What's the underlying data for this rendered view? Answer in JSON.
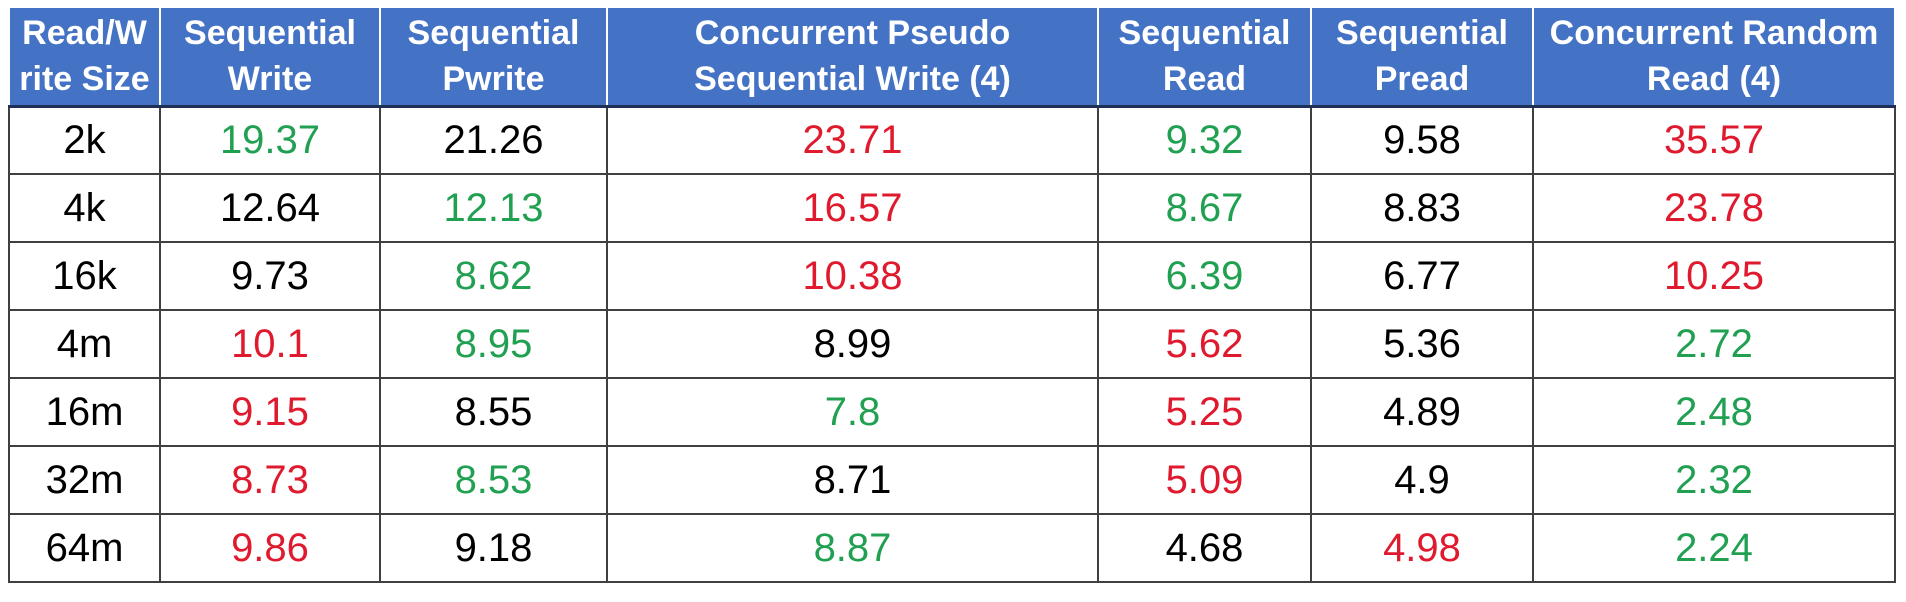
{
  "colors": {
    "header_bg": "#4472C4",
    "header_text": "#FFFFFF",
    "green": "#21A052",
    "red": "#E01A2E",
    "black": "#000000"
  },
  "chart_data": {
    "type": "table",
    "columns": [
      "Read/Write Size",
      "Sequential Write",
      "Sequential Pwrite",
      "Concurrent Pseudo Sequential Write (4)",
      "Sequential Read",
      "Sequential Pread",
      "Concurrent Random Read (4)"
    ],
    "header_lines": [
      [
        "Read/W",
        "rite Size"
      ],
      [
        "Sequential",
        "Write"
      ],
      [
        "Sequential",
        "Pwrite"
      ],
      [
        "Concurrent Pseudo",
        "Sequential Write (4)"
      ],
      [
        "Sequential",
        "Read"
      ],
      [
        "Sequential",
        "Pread"
      ],
      [
        "Concurrent Random",
        "Read (4)"
      ]
    ],
    "rows": [
      {
        "size": "2k",
        "cells": [
          {
            "value": "19.37",
            "color": "green"
          },
          {
            "value": "21.26",
            "color": "black"
          },
          {
            "value": "23.71",
            "color": "red"
          },
          {
            "value": "9.32",
            "color": "green"
          },
          {
            "value": "9.58",
            "color": "black"
          },
          {
            "value": "35.57",
            "color": "red"
          }
        ]
      },
      {
        "size": "4k",
        "cells": [
          {
            "value": "12.64",
            "color": "black"
          },
          {
            "value": "12.13",
            "color": "green"
          },
          {
            "value": "16.57",
            "color": "red"
          },
          {
            "value": "8.67",
            "color": "green"
          },
          {
            "value": "8.83",
            "color": "black"
          },
          {
            "value": "23.78",
            "color": "red"
          }
        ]
      },
      {
        "size": "16k",
        "cells": [
          {
            "value": "9.73",
            "color": "black"
          },
          {
            "value": "8.62",
            "color": "green"
          },
          {
            "value": "10.38",
            "color": "red"
          },
          {
            "value": "6.39",
            "color": "green"
          },
          {
            "value": "6.77",
            "color": "black"
          },
          {
            "value": "10.25",
            "color": "red"
          }
        ]
      },
      {
        "size": "4m",
        "cells": [
          {
            "value": "10.1",
            "color": "red"
          },
          {
            "value": "8.95",
            "color": "green"
          },
          {
            "value": "8.99",
            "color": "black"
          },
          {
            "value": "5.62",
            "color": "red"
          },
          {
            "value": "5.36",
            "color": "black"
          },
          {
            "value": "2.72",
            "color": "green"
          }
        ]
      },
      {
        "size": "16m",
        "cells": [
          {
            "value": "9.15",
            "color": "red"
          },
          {
            "value": "8.55",
            "color": "black"
          },
          {
            "value": "7.8",
            "color": "green"
          },
          {
            "value": "5.25",
            "color": "red"
          },
          {
            "value": "4.89",
            "color": "black"
          },
          {
            "value": "2.48",
            "color": "green"
          }
        ]
      },
      {
        "size": "32m",
        "cells": [
          {
            "value": "8.73",
            "color": "red"
          },
          {
            "value": "8.53",
            "color": "green"
          },
          {
            "value": "8.71",
            "color": "black"
          },
          {
            "value": "5.09",
            "color": "red"
          },
          {
            "value": "4.9",
            "color": "black"
          },
          {
            "value": "2.32",
            "color": "green"
          }
        ]
      },
      {
        "size": "64m",
        "cells": [
          {
            "value": "9.86",
            "color": "red"
          },
          {
            "value": "9.18",
            "color": "black"
          },
          {
            "value": "8.87",
            "color": "green"
          },
          {
            "value": "4.68",
            "color": "black"
          },
          {
            "value": "4.98",
            "color": "red"
          },
          {
            "value": "2.24",
            "color": "green"
          }
        ]
      }
    ]
  }
}
